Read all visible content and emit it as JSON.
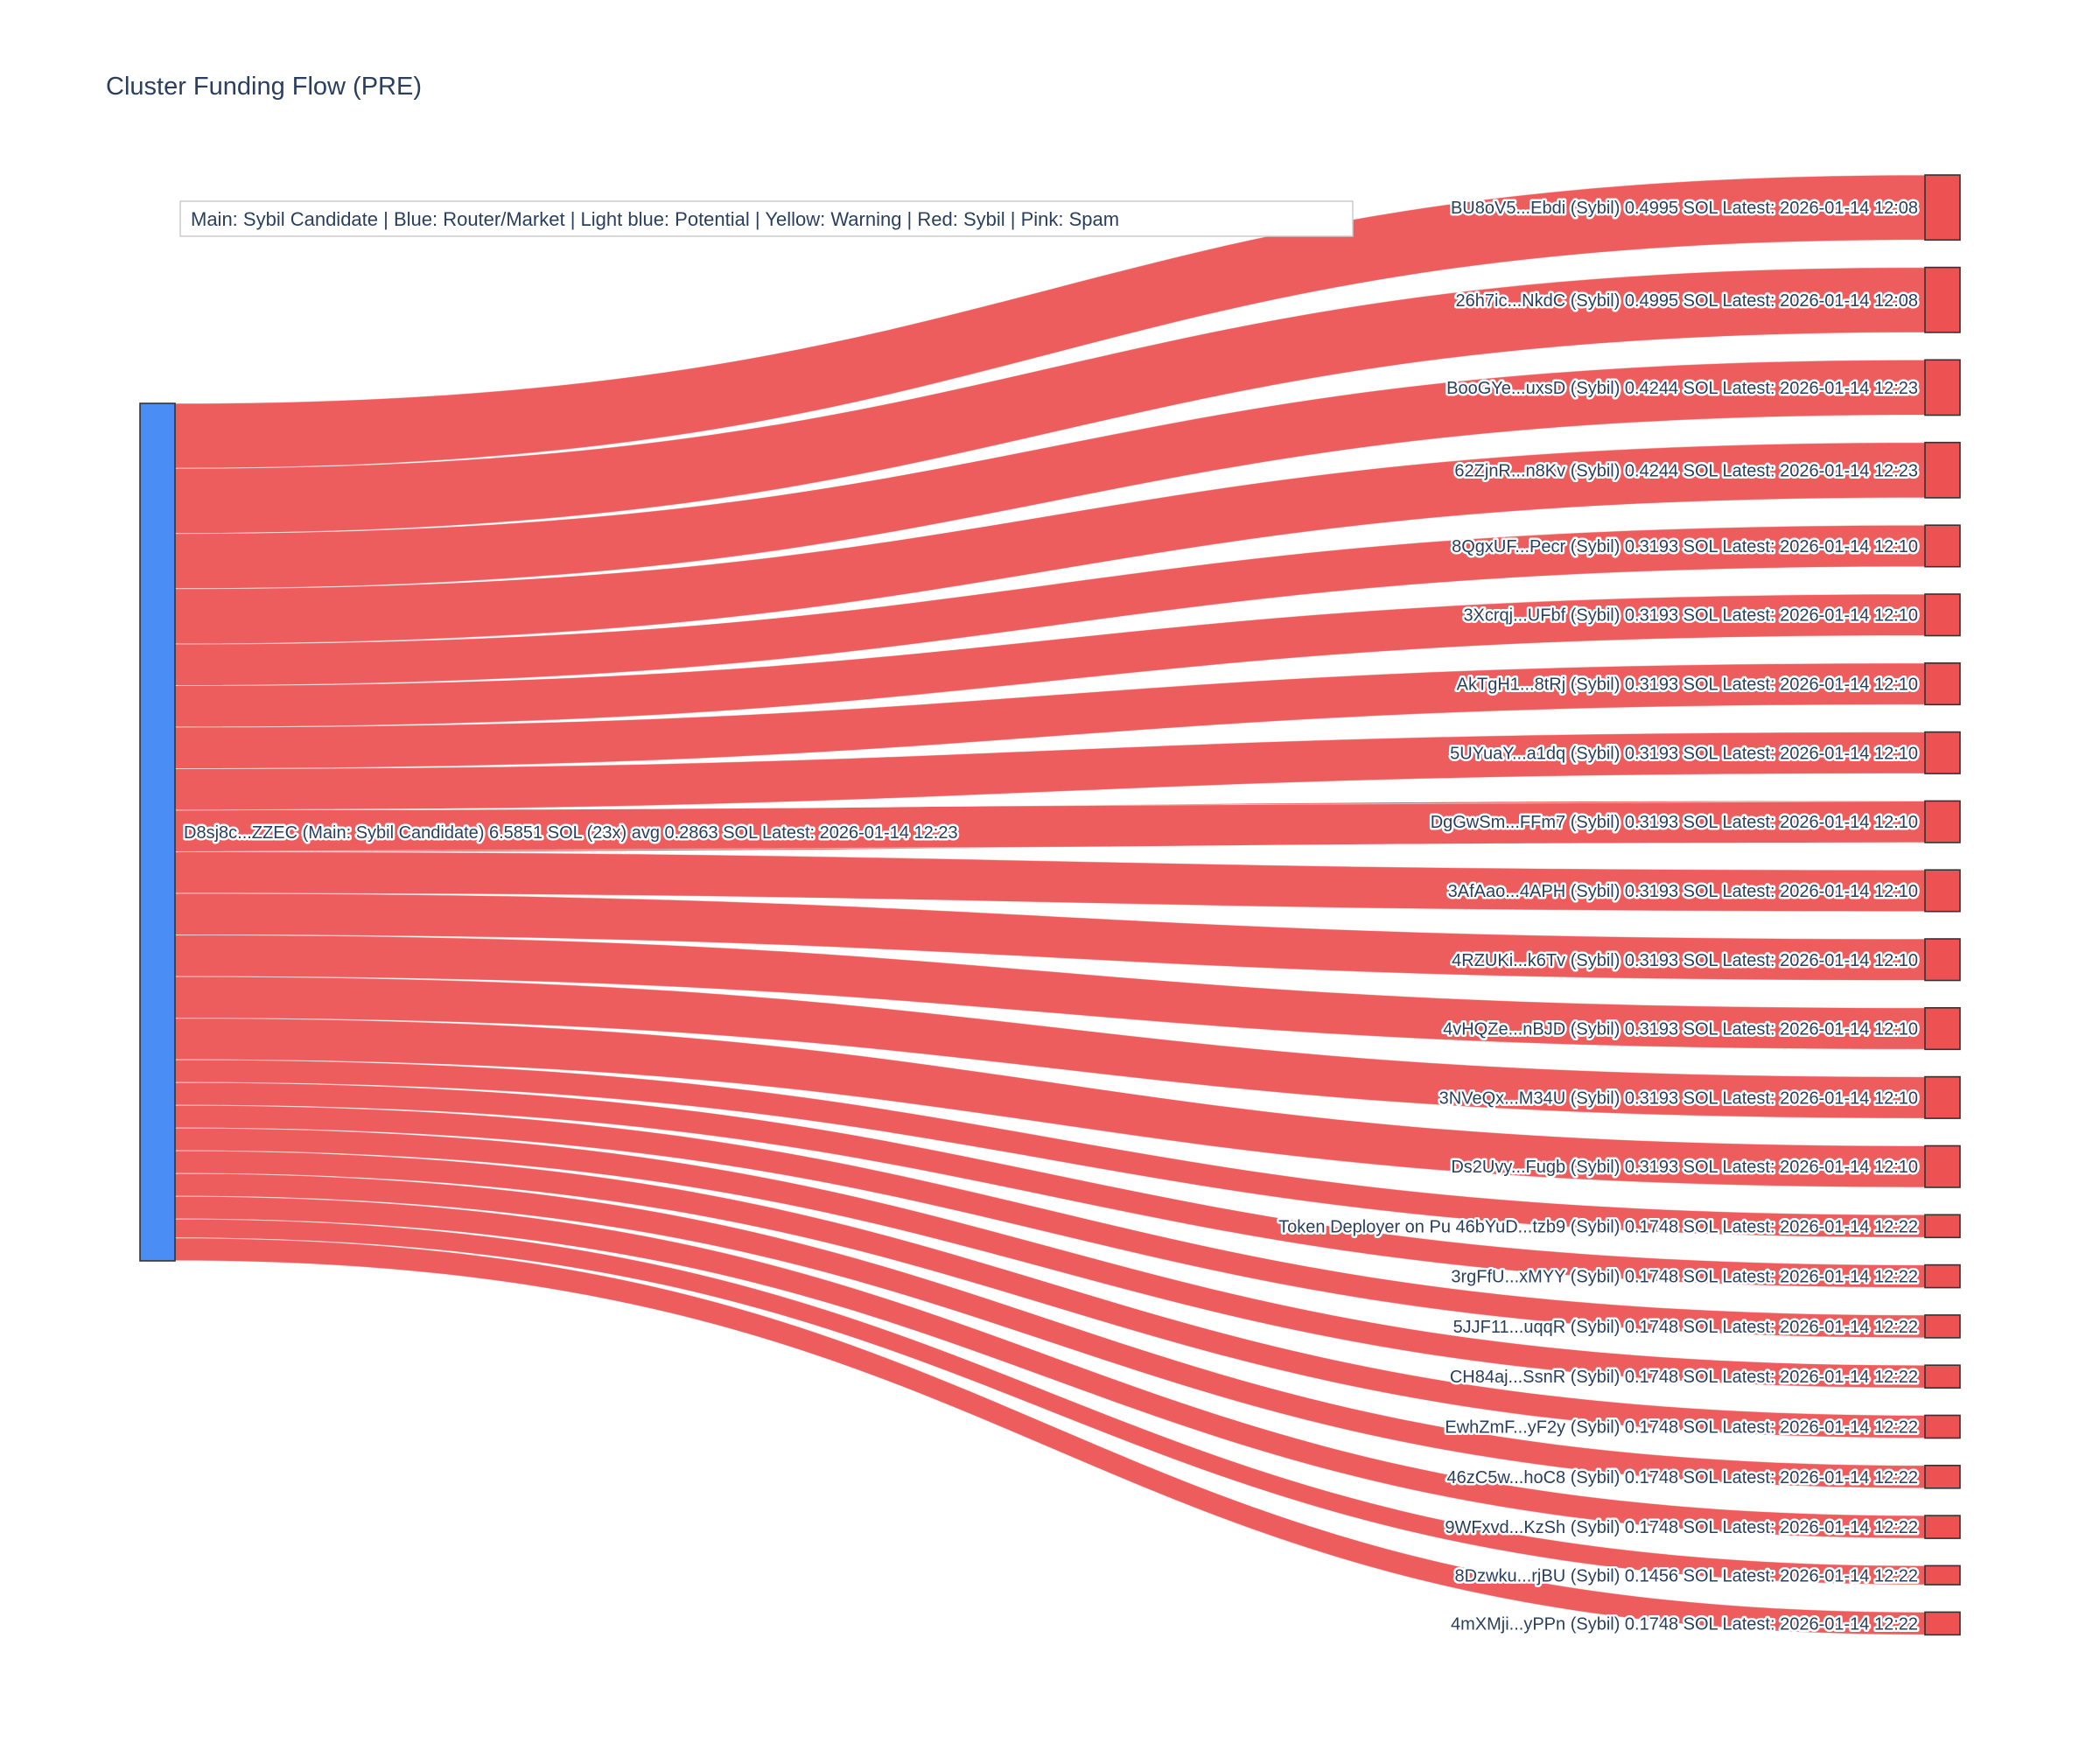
{
  "title": "Cluster Funding Flow (PRE)",
  "legend": {
    "text": "Main: Sybil Candidate  |  Blue: Router/Market | Light blue: Potential | Yellow: Warning | Red: Sybil | Pink: Spam"
  },
  "colors": {
    "main_node": "#4a8df5",
    "sybil_red": "#ed5152",
    "node_border": "#333333",
    "label_text": "#2a3f5f",
    "title_text": "#2a3f5f"
  },
  "chart_data": {
    "type": "sankey",
    "title": "Cluster Funding Flow (PRE)",
    "legend": "Main: Sybil Candidate  |  Blue: Router/Market | Light blue: Potential | Yellow: Warning | Red: Sybil | Pink: Spam",
    "source_node": {
      "label": "D8sj8c...ZZEC (Main: Sybil Candidate) 6.5851 SOL (23x) avg 0.2863 SOL Latest: 2026-01-14 12:23",
      "address": "D8sj8c...ZZEC",
      "role": "Main: Sybil Candidate",
      "total_sol": 6.5851,
      "tx_count": 23,
      "avg_sol": 0.2863,
      "latest": "2026-01-14 12:23"
    },
    "links": [
      {
        "label": "BU8oV5...Ebdi (Sybil) 0.4995 SOL Latest: 2026-01-14 12:08",
        "value": 0.4995
      },
      {
        "label": "26h7ic...NkdC (Sybil) 0.4995 SOL Latest: 2026-01-14 12:08",
        "value": 0.4995
      },
      {
        "label": "BooGYe...uxsD (Sybil) 0.4244 SOL Latest: 2026-01-14 12:23",
        "value": 0.4244
      },
      {
        "label": "62ZjnR...n8Kv (Sybil) 0.4244 SOL Latest: 2026-01-14 12:23",
        "value": 0.4244
      },
      {
        "label": "8QgxUF...Pecr (Sybil) 0.3193 SOL Latest: 2026-01-14 12:10",
        "value": 0.3193
      },
      {
        "label": "3Xcrqj...UFbf (Sybil) 0.3193 SOL Latest: 2026-01-14 12:10",
        "value": 0.3193
      },
      {
        "label": "AkTgH1...8tRj (Sybil) 0.3193 SOL Latest: 2026-01-14 12:10",
        "value": 0.3193
      },
      {
        "label": "5UYuaY...a1dq (Sybil) 0.3193 SOL Latest: 2026-01-14 12:10",
        "value": 0.3193
      },
      {
        "label": "DgGwSm...FFm7 (Sybil) 0.3193 SOL Latest: 2026-01-14 12:10",
        "value": 0.3193
      },
      {
        "label": "3AfAao...4APH (Sybil) 0.3193 SOL Latest: 2026-01-14 12:10",
        "value": 0.3193
      },
      {
        "label": "4RZUKi...k6Tv (Sybil) 0.3193 SOL Latest: 2026-01-14 12:10",
        "value": 0.3193
      },
      {
        "label": "4vHQZe...nBJD (Sybil) 0.3193 SOL Latest: 2026-01-14 12:10",
        "value": 0.3193
      },
      {
        "label": "3NVeQx...M34U (Sybil) 0.3193 SOL Latest: 2026-01-14 12:10",
        "value": 0.3193
      },
      {
        "label": "Ds2Uvy...Fugb (Sybil) 0.3193 SOL Latest: 2026-01-14 12:10",
        "value": 0.3193
      },
      {
        "label": "Token Deployer on Pu 46bYuD...tzb9 (Sybil) 0.1748 SOL Latest: 2026-01-14 12:22",
        "value": 0.1748
      },
      {
        "label": "3rgFfU...xMYY (Sybil) 0.1748 SOL Latest: 2026-01-14 12:22",
        "value": 0.1748
      },
      {
        "label": "5JJF11...uqqR (Sybil) 0.1748 SOL Latest: 2026-01-14 12:22",
        "value": 0.1748
      },
      {
        "label": "CH84aj...SsnR (Sybil) 0.1748 SOL Latest: 2026-01-14 12:22",
        "value": 0.1748
      },
      {
        "label": "EwhZmF...yF2y (Sybil) 0.1748 SOL Latest: 2026-01-14 12:22",
        "value": 0.1748
      },
      {
        "label": "46zC5w...hoC8 (Sybil) 0.1748 SOL Latest: 2026-01-14 12:22",
        "value": 0.1748
      },
      {
        "label": "9WFxvd...KzSh (Sybil) 0.1748 SOL Latest: 2026-01-14 12:22",
        "value": 0.1748
      },
      {
        "label": "8Dzwku...rjBU (Sybil) 0.1456 SOL Latest: 2026-01-14 12:22",
        "value": 0.1456
      },
      {
        "label": "4mXMji...yPPn (Sybil) 0.1748 SOL Latest: 2026-01-14 12:22",
        "value": 0.1748
      }
    ]
  }
}
